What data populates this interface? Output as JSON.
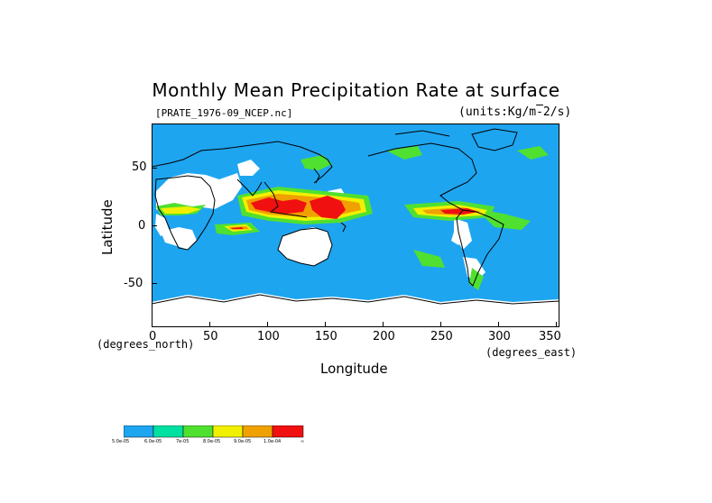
{
  "map": {
    "title": "Monthly Mean Precipitation Rate at surface",
    "file_label": "[PRATE_1976-09_NCEP.nc]",
    "units_label": "(units:Kg/m^-2/s)",
    "x_axis": {
      "label": "Longitude",
      "unit_label": "(degrees_east)",
      "ticks": [
        "0",
        "50",
        "100",
        "150",
        "200",
        "250",
        "300",
        "350"
      ]
    },
    "y_axis": {
      "label": "Latitude",
      "unit_label": "(degrees_north)",
      "ticks": [
        "50",
        "0",
        "-50"
      ]
    },
    "legend": {
      "labels": [
        "5.0e-05",
        "6.0e-05",
        "7e-05",
        "8.0e-05",
        "9.0e-05",
        "1.0e-04",
        "∞"
      ],
      "colors": [
        "#1ea5f0",
        "#00e0a0",
        "#50e030",
        "#f0f000",
        "#f0a000",
        "#f01010"
      ]
    },
    "colors": {
      "ocean": "#1ea5f0",
      "land": "#ffffff",
      "coast": "#000000"
    }
  }
}
